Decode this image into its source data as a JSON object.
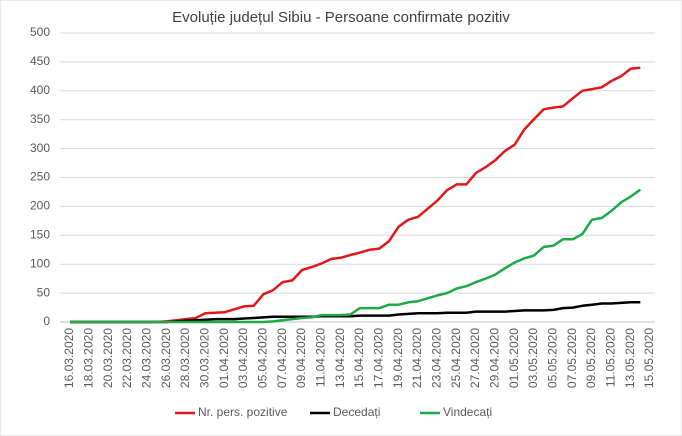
{
  "chart_data": {
    "type": "line",
    "title": "Evoluție județul Sibiu - Persoane confirmate pozitiv",
    "categories": [
      "16.03.2020",
      null,
      "18.03.2020",
      null,
      "20.03.2020",
      null,
      "22.03.2020",
      null,
      "24.03.2020",
      null,
      "26.03.2020",
      null,
      "28.03.2020",
      null,
      "30.03.2020",
      null,
      "01.04.2020",
      null,
      "03.04.2020",
      null,
      "05.04.2020",
      null,
      "07.04.2020",
      null,
      "09.04.2020",
      null,
      "11.04.2020",
      null,
      "13.04.2020",
      null,
      "15.04.2020",
      null,
      "17.04.2020",
      null,
      "19.04.2020",
      null,
      "21.04.2020",
      null,
      "23.04.2020",
      null,
      "25.04.2020",
      null,
      "27.04.2020",
      null,
      "29.04.2020",
      null,
      "01.05.2020",
      null,
      "03.05.2020",
      null,
      "05.05.2020",
      null,
      "07.05.2020",
      null,
      "09.05.2020",
      null,
      "11.05.2020",
      null,
      "13.05.2020",
      null,
      "15.05.2020"
    ],
    "series": [
      {
        "name": "Nr. pers. pozitive",
        "color": "#e0181b",
        "values": [
          0,
          0,
          0,
          0,
          0,
          0,
          0,
          0,
          0,
          0,
          1,
          3,
          5,
          7,
          15,
          16,
          17,
          22,
          27,
          28,
          48,
          55,
          69,
          72,
          90,
          95,
          101,
          109,
          111,
          116,
          120,
          125,
          127,
          140,
          165,
          177,
          182,
          196,
          210,
          228,
          238,
          238,
          258,
          268,
          280,
          296,
          307,
          333,
          351,
          368,
          371,
          373,
          387,
          400,
          403,
          406,
          417,
          425,
          438,
          440,
          null
        ]
      },
      {
        "name": "Decedați",
        "color": "#000000",
        "values": [
          0,
          0,
          0,
          0,
          0,
          0,
          0,
          0,
          0,
          0,
          0,
          1,
          2,
          3,
          4,
          5,
          5,
          5,
          6,
          7,
          8,
          9,
          9,
          9,
          9,
          9,
          10,
          10,
          10,
          10,
          11,
          11,
          11,
          11,
          13,
          14,
          15,
          15,
          15,
          16,
          16,
          16,
          18,
          18,
          18,
          18,
          19,
          20,
          20,
          20,
          21,
          24,
          25,
          28,
          30,
          32,
          32,
          33,
          34,
          34,
          null
        ]
      },
      {
        "name": "Vindecați",
        "color": "#1ea84a",
        "values": [
          0,
          0,
          0,
          0,
          0,
          0,
          0,
          0,
          0,
          0,
          0,
          0,
          0,
          0,
          0,
          0,
          0,
          0,
          0,
          0,
          0,
          1,
          3,
          5,
          7,
          8,
          12,
          12,
          12,
          13,
          24,
          24,
          24,
          30,
          30,
          34,
          36,
          41,
          46,
          50,
          58,
          62,
          69,
          75,
          82,
          93,
          103,
          110,
          115,
          130,
          132,
          143,
          143,
          152,
          177,
          180,
          192,
          207,
          217,
          229,
          null
        ]
      }
    ],
    "ylim": [
      0,
      500
    ],
    "yticks": [
      0,
      50,
      100,
      150,
      200,
      250,
      300,
      350,
      400,
      450,
      500
    ],
    "grid": true,
    "legend": "bottom"
  }
}
